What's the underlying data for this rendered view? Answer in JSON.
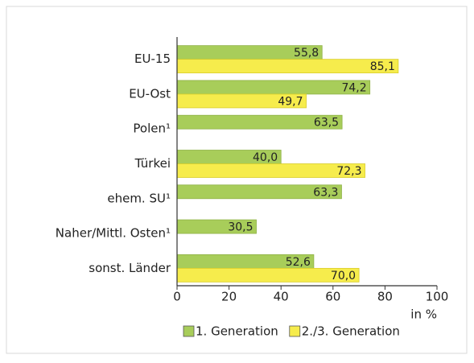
{
  "chart_data": {
    "type": "hbar",
    "categories": [
      "EU-15",
      "EU-Ost",
      "Polen¹",
      "Türkei",
      "ehem. SU¹",
      "Naher/Mittl. Osten¹",
      "sonst. Länder"
    ],
    "series": [
      {
        "name": "1. Generation",
        "color": "#a8cd5a",
        "values": [
          55.8,
          74.2,
          63.5,
          40.0,
          63.3,
          30.5,
          52.6
        ],
        "value_labels": [
          "55,8",
          "74,2",
          "63,5",
          "40,0",
          "63,3",
          "30,5",
          "52,6"
        ]
      },
      {
        "name": "2./3. Generation",
        "color": "#f6ec4c",
        "values": [
          85.1,
          49.7,
          null,
          72.3,
          null,
          null,
          70.0
        ],
        "value_labels": [
          "85,1",
          "49,7",
          null,
          "72,3",
          null,
          null,
          "70,0"
        ]
      }
    ],
    "xlim": [
      0,
      100
    ],
    "xticks": [
      0,
      20,
      40,
      60,
      80,
      100
    ],
    "xlabel": "in %",
    "legend": "bottom"
  }
}
